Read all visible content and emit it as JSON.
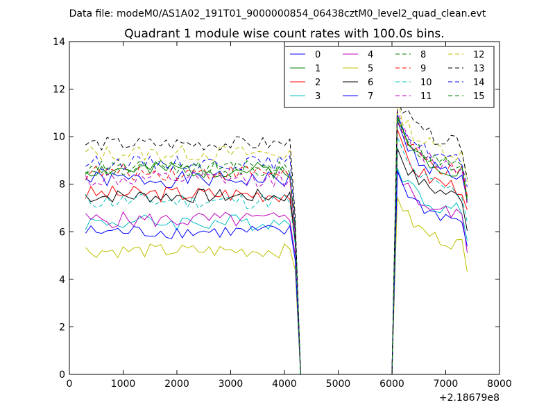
{
  "chart_data": {
    "type": "line",
    "suptitle": "Data file: modeM0/AS1A02_191T01_9000000854_06438cztM0_level2_quad_clean.evt",
    "title": "Quadrant 1 module wise count rates with 100.0s bins.",
    "xlabel": "",
    "ylabel": "",
    "x_offset_label": "+2.18679e8",
    "xlim": [
      0,
      8000
    ],
    "ylim": [
      0,
      14
    ],
    "xticks": [
      0,
      1000,
      2000,
      3000,
      4000,
      5000,
      6000,
      7000,
      8000
    ],
    "yticks": [
      0,
      2,
      4,
      6,
      8,
      10,
      12,
      14
    ],
    "legend_position": "top-right",
    "legend_columns": 4,
    "segment1": {
      "start": 300,
      "end": 4100,
      "step": 100
    },
    "gap": {
      "x": [
        4200,
        4300,
        4400,
        5900,
        6000
      ],
      "values": [
        6.0,
        0,
        0,
        0,
        0
      ]
    },
    "segment2": {
      "start": 6100,
      "end": 7400,
      "step": 100
    },
    "series": [
      {
        "name": "0",
        "color": "#0000ff",
        "dashed": false,
        "level1": 8.2,
        "level2": 8.9,
        "amp": 0.35,
        "seed": 1
      },
      {
        "name": "1",
        "color": "#008000",
        "dashed": false,
        "level1": 8.6,
        "level2": 9.1,
        "amp": 0.35,
        "seed": 2
      },
      {
        "name": "2",
        "color": "#ff0000",
        "dashed": false,
        "level1": 7.6,
        "level2": 8.4,
        "amp": 0.35,
        "seed": 3
      },
      {
        "name": "3",
        "color": "#00bfbf",
        "dashed": false,
        "level1": 6.4,
        "level2": 7.4,
        "amp": 0.35,
        "seed": 4
      },
      {
        "name": "4",
        "color": "#bf00bf",
        "dashed": false,
        "level1": 6.5,
        "level2": 7.2,
        "amp": 0.35,
        "seed": 5
      },
      {
        "name": "5",
        "color": "#bfbf00",
        "dashed": false,
        "level1": 5.2,
        "level2": 6.0,
        "amp": 0.3,
        "seed": 6
      },
      {
        "name": "6",
        "color": "#000000",
        "dashed": false,
        "level1": 7.5,
        "level2": 8.0,
        "amp": 0.3,
        "seed": 7
      },
      {
        "name": "7",
        "color": "#0000ff",
        "dashed": false,
        "level1": 6.0,
        "level2": 7.0,
        "amp": 0.3,
        "seed": 8
      },
      {
        "name": "8",
        "color": "#008000",
        "dashed": true,
        "level1": 8.6,
        "level2": 9.2,
        "amp": 0.35,
        "seed": 9
      },
      {
        "name": "9",
        "color": "#ff0000",
        "dashed": true,
        "level1": 8.5,
        "level2": 9.0,
        "amp": 0.35,
        "seed": 10
      },
      {
        "name": "10",
        "color": "#00bfbf",
        "dashed": true,
        "level1": 7.3,
        "level2": 8.2,
        "amp": 0.35,
        "seed": 11
      },
      {
        "name": "11",
        "color": "#bf00bf",
        "dashed": true,
        "level1": 8.2,
        "level2": 9.2,
        "amp": 0.35,
        "seed": 12
      },
      {
        "name": "12",
        "color": "#bfbf00",
        "dashed": true,
        "level1": 9.3,
        "level2": 9.8,
        "amp": 0.35,
        "seed": 13
      },
      {
        "name": "13",
        "color": "#000000",
        "dashed": true,
        "level1": 9.7,
        "level2": 10.2,
        "amp": 0.3,
        "seed": 14
      },
      {
        "name": "14",
        "color": "#0000ff",
        "dashed": true,
        "level1": 8.9,
        "level2": 9.5,
        "amp": 0.3,
        "seed": 15
      },
      {
        "name": "15",
        "color": "#008000",
        "dashed": true,
        "level1": 8.7,
        "level2": 9.3,
        "amp": 0.3,
        "seed": 16
      }
    ]
  }
}
